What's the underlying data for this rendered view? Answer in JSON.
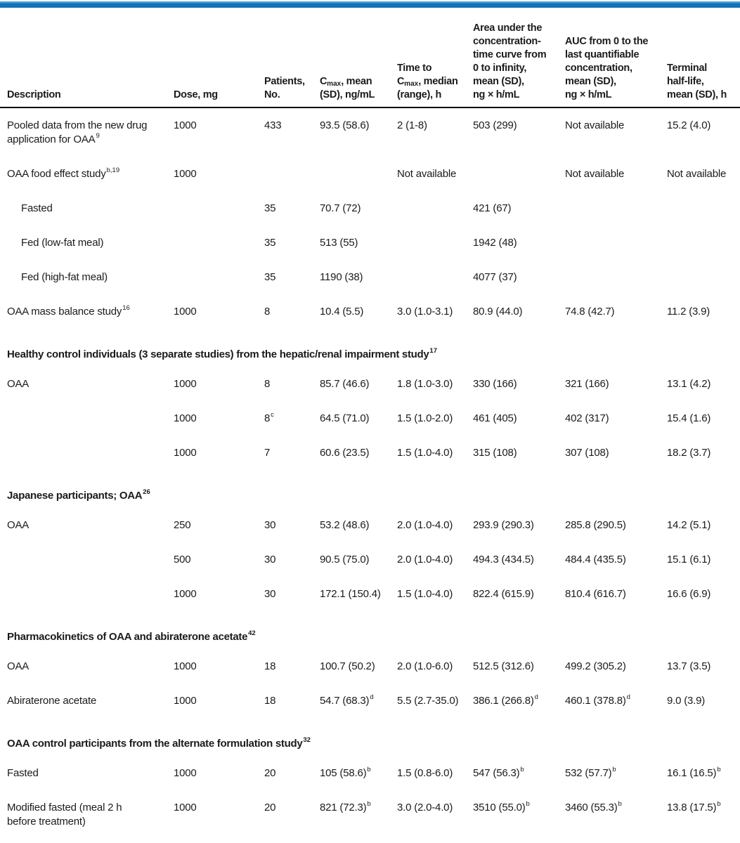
{
  "page": {
    "accent_color_top": "#459fd6",
    "accent_color_main": "#1173b4",
    "rule_color": "#000000",
    "text_color": "#1b1b1b"
  },
  "table": {
    "header": [
      {
        "name": "description",
        "lines": [
          [
            {
              "t": "Description"
            }
          ]
        ]
      },
      {
        "name": "dose",
        "lines": [
          [
            {
              "t": "Dose, mg"
            }
          ]
        ]
      },
      {
        "name": "patients",
        "lines": [
          [
            {
              "t": "Patients,"
            }
          ],
          [
            {
              "t": "No."
            }
          ]
        ]
      },
      {
        "name": "cmax",
        "lines": [
          [
            {
              "t": "C"
            },
            {
              "sub": "max"
            },
            {
              "t": ", mean"
            }
          ],
          [
            {
              "t": "(SD), ng/mL"
            }
          ]
        ]
      },
      {
        "name": "tmax",
        "lines": [
          [
            {
              "t": "Time to"
            }
          ],
          [
            {
              "t": "C"
            },
            {
              "sub": "max"
            },
            {
              "t": ", median"
            }
          ],
          [
            {
              "t": "(range), h"
            }
          ]
        ]
      },
      {
        "name": "auc-infinity",
        "lines": [
          [
            {
              "t": "Area under the"
            }
          ],
          [
            {
              "t": "concentration-"
            }
          ],
          [
            {
              "t": "time curve from"
            }
          ],
          [
            {
              "t": "0 to infinity,"
            }
          ],
          [
            {
              "t": "mean (SD),"
            }
          ],
          [
            {
              "t": "ng × h/mL"
            }
          ]
        ]
      },
      {
        "name": "auc-last",
        "lines": [
          [
            {
              "t": "AUC from 0 to the"
            }
          ],
          [
            {
              "t": "last quantifiable"
            }
          ],
          [
            {
              "t": "concentration,"
            }
          ],
          [
            {
              "t": "mean (SD),"
            }
          ],
          [
            {
              "t": "ng × h/mL"
            }
          ]
        ]
      },
      {
        "name": "half-life",
        "lines": [
          [
            {
              "t": "Terminal"
            }
          ],
          [
            {
              "t": "half-life,"
            }
          ],
          [
            {
              "t": "mean (SD), h"
            }
          ]
        ]
      }
    ],
    "rows": [
      {
        "type": "data",
        "cells": [
          {
            "t": "Pooled data from the new drug\napplication for OAA",
            "sup": "9"
          },
          {
            "t": "1000"
          },
          {
            "t": "433"
          },
          {
            "t": "93.5 (58.6)"
          },
          {
            "t": "2 (1-8)"
          },
          {
            "t": "503 (299)"
          },
          {
            "t": "Not available"
          },
          {
            "t": "15.2 (4.0)"
          }
        ]
      },
      {
        "type": "data",
        "cells": [
          {
            "t": "OAA food effect study",
            "sup": "b,19"
          },
          {
            "t": "1000"
          },
          null,
          null,
          {
            "t": "Not available"
          },
          null,
          {
            "t": "Not available"
          },
          {
            "t": "Not available"
          }
        ]
      },
      {
        "type": "data",
        "indent": true,
        "cells": [
          {
            "t": "Fasted"
          },
          null,
          {
            "t": "35"
          },
          {
            "t": "70.7 (72)"
          },
          null,
          {
            "t": "421 (67)"
          },
          null,
          null
        ]
      },
      {
        "type": "data",
        "indent": true,
        "cells": [
          {
            "t": "Fed (low-fat meal)"
          },
          null,
          {
            "t": "35"
          },
          {
            "t": "513 (55)"
          },
          null,
          {
            "t": "1942 (48)"
          },
          null,
          null
        ]
      },
      {
        "type": "data",
        "indent": true,
        "cells": [
          {
            "t": "Fed (high-fat meal)"
          },
          null,
          {
            "t": "35"
          },
          {
            "t": "1190 (38)"
          },
          null,
          {
            "t": "4077 (37)"
          },
          null,
          null
        ]
      },
      {
        "type": "data",
        "cells": [
          {
            "t": "OAA mass balance study",
            "sup": "16"
          },
          {
            "t": "1000"
          },
          {
            "t": "8"
          },
          {
            "t": "10.4 (5.5)"
          },
          {
            "t": "3.0 (1.0-3.1)"
          },
          {
            "t": "80.9 (44.0)"
          },
          {
            "t": "74.8 (42.7)"
          },
          {
            "t": "11.2 (3.9)"
          }
        ]
      },
      {
        "type": "section",
        "t": "Healthy control individuals (3 separate studies) from the hepatic/renal impairment study",
        "sup": "17"
      },
      {
        "type": "data",
        "cells": [
          {
            "t": "OAA"
          },
          {
            "t": "1000"
          },
          {
            "t": "8"
          },
          {
            "t": "85.7 (46.6)"
          },
          {
            "t": "1.8 (1.0-3.0)"
          },
          {
            "t": "330 (166)"
          },
          {
            "t": "321 (166)"
          },
          {
            "t": "13.1 (4.2)"
          }
        ]
      },
      {
        "type": "data",
        "cells": [
          null,
          {
            "t": "1000"
          },
          {
            "t": "8",
            "sup": "c"
          },
          {
            "t": "64.5 (71.0)"
          },
          {
            "t": "1.5 (1.0-2.0)"
          },
          {
            "t": "461 (405)"
          },
          {
            "t": "402 (317)"
          },
          {
            "t": "15.4 (1.6)"
          }
        ]
      },
      {
        "type": "data",
        "cells": [
          null,
          {
            "t": "1000"
          },
          {
            "t": "7"
          },
          {
            "t": "60.6 (23.5)"
          },
          {
            "t": "1.5 (1.0-4.0)"
          },
          {
            "t": "315 (108)"
          },
          {
            "t": "307 (108)"
          },
          {
            "t": "18.2 (3.7)"
          }
        ]
      },
      {
        "type": "section",
        "t": "Japanese participants; OAA",
        "sup": "26"
      },
      {
        "type": "data",
        "cells": [
          {
            "t": "OAA"
          },
          {
            "t": "250"
          },
          {
            "t": "30"
          },
          {
            "t": "53.2 (48.6)"
          },
          {
            "t": "2.0 (1.0-4.0)"
          },
          {
            "t": "293.9 (290.3)"
          },
          {
            "t": "285.8 (290.5)"
          },
          {
            "t": "14.2 (5.1)"
          }
        ]
      },
      {
        "type": "data",
        "cells": [
          null,
          {
            "t": "500"
          },
          {
            "t": "30"
          },
          {
            "t": "90.5 (75.0)"
          },
          {
            "t": "2.0 (1.0-4.0)"
          },
          {
            "t": "494.3 (434.5)"
          },
          {
            "t": "484.4 (435.5)"
          },
          {
            "t": "15.1 (6.1)"
          }
        ]
      },
      {
        "type": "data",
        "cells": [
          null,
          {
            "t": "1000"
          },
          {
            "t": "30"
          },
          {
            "t": "172.1 (150.4)"
          },
          {
            "t": "1.5 (1.0-4.0)"
          },
          {
            "t": "822.4 (615.9)"
          },
          {
            "t": "810.4 (616.7)"
          },
          {
            "t": "16.6 (6.9)"
          }
        ]
      },
      {
        "type": "section",
        "t": "Pharmacokinetics of OAA and abiraterone acetate",
        "sup": "42"
      },
      {
        "type": "data",
        "cells": [
          {
            "t": "OAA"
          },
          {
            "t": "1000"
          },
          {
            "t": "18"
          },
          {
            "t": "100.7 (50.2)"
          },
          {
            "t": "2.0 (1.0-6.0)"
          },
          {
            "t": "512.5 (312.6)"
          },
          {
            "t": "499.2 (305.2)"
          },
          {
            "t": "13.7 (3.5)"
          }
        ]
      },
      {
        "type": "data",
        "cells": [
          {
            "t": "Abiraterone acetate"
          },
          {
            "t": "1000"
          },
          {
            "t": "18"
          },
          {
            "t": "54.7 (68.3)",
            "sup": "d"
          },
          {
            "t": "5.5 (2.7-35.0)"
          },
          {
            "t": "386.1 (266.8)",
            "sup": "d"
          },
          {
            "t": "460.1 (378.8)",
            "sup": "d"
          },
          {
            "t": "9.0 (3.9)"
          }
        ]
      },
      {
        "type": "section",
        "t": "OAA control participants from the alternate formulation study",
        "sup": "32"
      },
      {
        "type": "data",
        "cells": [
          {
            "t": "Fasted"
          },
          {
            "t": "1000"
          },
          {
            "t": "20"
          },
          {
            "t": "105 (58.6)",
            "sup": "b"
          },
          {
            "t": "1.5 (0.8-6.0)"
          },
          {
            "t": "547 (56.3)",
            "sup": "b"
          },
          {
            "t": "532 (57.7)",
            "sup": "b"
          },
          {
            "t": "16.1 (16.5)",
            "sup": "b"
          }
        ]
      },
      {
        "type": "data",
        "cells": [
          {
            "t": "Modified fasted (meal 2 h\nbefore treatment)"
          },
          {
            "t": "1000"
          },
          {
            "t": "20"
          },
          {
            "t": "821 (72.3)",
            "sup": "b"
          },
          {
            "t": "3.0 (2.0-4.0)"
          },
          {
            "t": "3510 (55.0)",
            "sup": "b"
          },
          {
            "t": "3460 (55.3)",
            "sup": "b"
          },
          {
            "t": "13.8 (17.5)",
            "sup": "b"
          }
        ]
      }
    ]
  }
}
